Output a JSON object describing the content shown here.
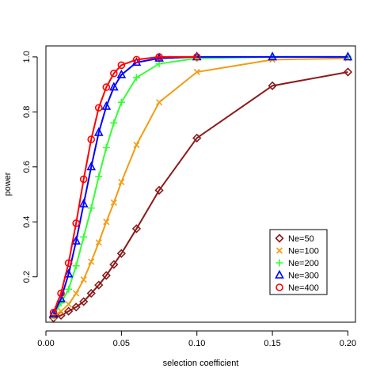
{
  "chart_data": {
    "type": "line",
    "title": "",
    "xlabel": "selection coefficient",
    "ylabel": "power",
    "xlim": [
      0,
      0.205
    ],
    "ylim": [
      0.035,
      1.04
    ],
    "xticks": [
      0.0,
      0.05,
      0.1,
      0.15,
      0.2
    ],
    "xtick_labels": [
      "0.00",
      "0.05",
      "0.10",
      "0.15",
      "0.20"
    ],
    "yticks": [
      0.2,
      0.4,
      0.6,
      0.8,
      1.0
    ],
    "ytick_labels": [
      "0.2",
      "0.4",
      "0.6",
      "0.8",
      "1.0"
    ],
    "grid": false,
    "legend_position": "bottom-right",
    "series": [
      {
        "name": "Ne=50",
        "color": "#8B1A1A",
        "marker": "diamond",
        "x": [
          0.005,
          0.01,
          0.015,
          0.02,
          0.025,
          0.03,
          0.035,
          0.04,
          0.045,
          0.05,
          0.06,
          0.075,
          0.1,
          0.15,
          0.2
        ],
        "y": [
          0.05,
          0.06,
          0.075,
          0.09,
          0.11,
          0.14,
          0.17,
          0.205,
          0.245,
          0.285,
          0.375,
          0.515,
          0.705,
          0.895,
          0.945
        ]
      },
      {
        "name": "Ne=100",
        "color": "#F39C12",
        "marker": "x",
        "x": [
          0.005,
          0.01,
          0.015,
          0.02,
          0.025,
          0.03,
          0.035,
          0.04,
          0.045,
          0.05,
          0.06,
          0.075,
          0.1,
          0.15,
          0.2
        ],
        "y": [
          0.055,
          0.075,
          0.1,
          0.14,
          0.19,
          0.255,
          0.325,
          0.4,
          0.47,
          0.545,
          0.68,
          0.835,
          0.945,
          0.99,
          0.995
        ]
      },
      {
        "name": "Ne=200",
        "color": "#33FF33",
        "marker": "plus",
        "x": [
          0.005,
          0.01,
          0.015,
          0.02,
          0.025,
          0.03,
          0.035,
          0.04,
          0.045,
          0.05,
          0.06,
          0.075,
          0.1,
          0.15,
          0.2
        ],
        "y": [
          0.06,
          0.105,
          0.155,
          0.24,
          0.345,
          0.45,
          0.565,
          0.67,
          0.76,
          0.835,
          0.925,
          0.975,
          0.995,
          1.0,
          1.0
        ]
      },
      {
        "name": "Ne=300",
        "color": "#0000FF",
        "marker": "triangle",
        "x": [
          0.005,
          0.01,
          0.015,
          0.02,
          0.025,
          0.03,
          0.035,
          0.04,
          0.045,
          0.05,
          0.06,
          0.075,
          0.1,
          0.15,
          0.2
        ],
        "y": [
          0.065,
          0.12,
          0.21,
          0.33,
          0.465,
          0.6,
          0.725,
          0.82,
          0.89,
          0.935,
          0.98,
          0.995,
          1.0,
          1.0,
          1.0
        ]
      },
      {
        "name": "Ne=400",
        "color": "#FF0000",
        "marker": "circle",
        "x": [
          0.005,
          0.01,
          0.015,
          0.02,
          0.025,
          0.03,
          0.035,
          0.04,
          0.045,
          0.05,
          0.06,
          0.075,
          0.1
        ],
        "y": [
          0.07,
          0.14,
          0.25,
          0.395,
          0.555,
          0.7,
          0.815,
          0.89,
          0.94,
          0.97,
          0.99,
          1.0,
          1.0
        ]
      }
    ]
  }
}
